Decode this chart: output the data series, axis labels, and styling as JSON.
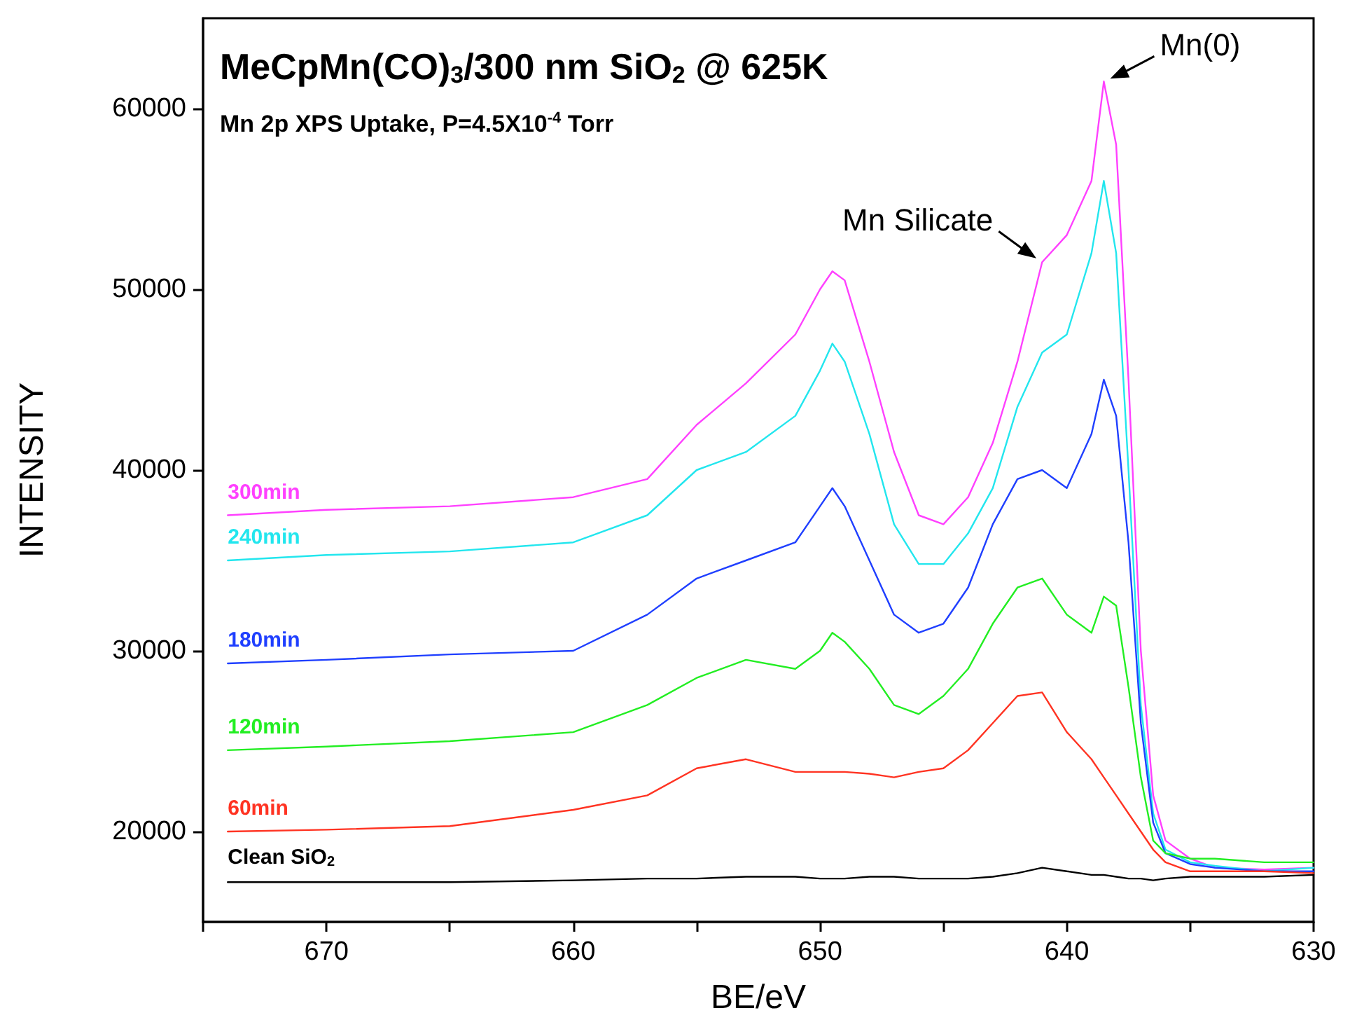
{
  "chart_data": {
    "type": "line",
    "title": "MeCpMn(CO)$_{3}$/300 nm SiO$_{2}$ @ 625K",
    "subtitle": "Mn 2p XPS Uptake, P=4.5X10$^{-4}$ Torr",
    "xlabel": "BE/eV",
    "ylabel": "INTENSITY",
    "x": [
      674,
      670,
      665,
      660,
      657,
      655,
      653,
      651,
      650,
      649.5,
      649,
      648,
      647,
      646,
      645,
      644,
      643,
      642,
      641,
      640,
      639,
      638.5,
      638,
      637.5,
      637,
      636.5,
      636,
      635,
      634,
      632,
      630
    ],
    "series": [
      {
        "name": "300min",
        "color": "#ff40ff",
        "values": [
          37500,
          37800,
          38000,
          38500,
          39500,
          42500,
          44800,
          47500,
          50000,
          51000,
          50500,
          46000,
          41000,
          37500,
          37000,
          38500,
          41500,
          46000,
          51500,
          53000,
          56000,
          61500,
          58000,
          45000,
          30000,
          22000,
          19500,
          18500,
          18000,
          17900,
          18000
        ]
      },
      {
        "name": "240min",
        "color": "#22e6ee",
        "values": [
          35000,
          35300,
          35500,
          36000,
          37500,
          40000,
          41000,
          43000,
          45500,
          47000,
          46000,
          42000,
          37000,
          34800,
          34800,
          36500,
          39000,
          43500,
          46500,
          47500,
          52000,
          56000,
          52000,
          40000,
          27000,
          21000,
          19000,
          18300,
          18100,
          17800,
          18000
        ]
      },
      {
        "name": "180min",
        "color": "#1f3fff",
        "values": [
          29300,
          29500,
          29800,
          30000,
          32000,
          34000,
          35000,
          36000,
          38000,
          39000,
          38000,
          35000,
          32000,
          31000,
          31500,
          33500,
          37000,
          39500,
          40000,
          39000,
          42000,
          45000,
          43000,
          36000,
          26000,
          20500,
          18800,
          18200,
          18000,
          17800,
          17800
        ]
      },
      {
        "name": "120min",
        "color": "#22ee22",
        "values": [
          24500,
          24700,
          25000,
          25500,
          27000,
          28500,
          29500,
          29000,
          30000,
          31000,
          30500,
          29000,
          27000,
          26500,
          27500,
          29000,
          31500,
          33500,
          34000,
          32000,
          31000,
          33000,
          32500,
          28000,
          23000,
          19500,
          18800,
          18500,
          18500,
          18300,
          18300
        ]
      },
      {
        "name": "60min",
        "color": "#ff3322",
        "values": [
          20000,
          20100,
          20300,
          21200,
          22000,
          23500,
          24000,
          23300,
          23300,
          23300,
          23300,
          23200,
          23000,
          23300,
          23500,
          24500,
          26000,
          27500,
          27700,
          25500,
          24000,
          23000,
          22000,
          21000,
          20000,
          19000,
          18300,
          17800,
          17800,
          17800,
          17700
        ]
      },
      {
        "name": "Clean SiO$_{2}$",
        "color": "#000000",
        "values": [
          17200,
          17200,
          17200,
          17300,
          17400,
          17400,
          17500,
          17500,
          17400,
          17400,
          17400,
          17500,
          17500,
          17400,
          17400,
          17400,
          17500,
          17700,
          18000,
          17800,
          17600,
          17600,
          17500,
          17400,
          17400,
          17300,
          17400,
          17500,
          17500,
          17500,
          17600
        ]
      }
    ],
    "xlim": [
      675,
      630
    ],
    "xticks": [
      {
        "value": 675,
        "label": null
      },
      670,
      {
        "value": 665,
        "label": null
      },
      660,
      {
        "value": 655,
        "label": null
      },
      650,
      {
        "value": 645,
        "label": null
      },
      640,
      {
        "value": 635,
        "label": null
      },
      630
    ],
    "ylim": [
      15000,
      65000
    ],
    "yticks": [
      20000,
      30000,
      40000,
      50000,
      60000
    ],
    "annotations": [
      {
        "text": "Mn(0)",
        "x": 638.5,
        "y": 61500
      },
      {
        "text": "Mn Silicate",
        "x": 641,
        "y": 51500
      }
    ],
    "grid": false,
    "legend": false,
    "marker": "none",
    "line_style": "solid"
  }
}
